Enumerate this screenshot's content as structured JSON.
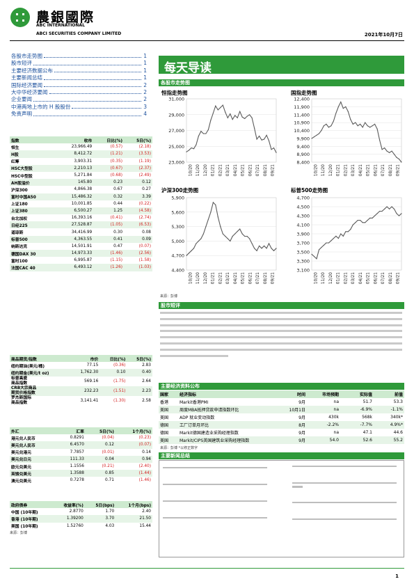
{
  "header": {
    "brand_cn": "農銀國際",
    "brand_en_1": "ABC INTERNATIONAL",
    "brand_en_2": "ABCI SECURITIES COMPANY LIMITED",
    "date": "2021年10月7日"
  },
  "toc": [
    {
      "label": "各股市走势图",
      "page": "1"
    },
    {
      "label": "股市短评",
      "page": "1"
    },
    {
      "label": "主要经济数据公布",
      "page": "1"
    },
    {
      "label": "主要新闻总结",
      "page": "1"
    },
    {
      "label": "国际经济要闻",
      "page": "2"
    },
    {
      "label": "大中华经济要闻",
      "page": "2"
    },
    {
      "label": "企业要闻",
      "page": "2"
    },
    {
      "label": "中港两地上市的 H 股股份",
      "page": "3"
    },
    {
      "label": "免责声明",
      "page": "4"
    }
  ],
  "index_table": {
    "headers": [
      "指数",
      "收市",
      "日比(%)",
      "5日(%)"
    ],
    "rows": [
      [
        "恒生",
        "23,966.49",
        "(0.57)",
        "(2.18)"
      ],
      [
        "H股",
        "8,412.72",
        "(1.21)",
        "(3.53)"
      ],
      [
        "红筹",
        "3,903.31",
        "(0.35)",
        "(1.19)"
      ],
      [
        "HSC大型股",
        "2,210.13",
        "(0.67)",
        "(2.37)"
      ],
      [
        "HSC中型股",
        "5,271.84",
        "(0.68)",
        "(2.49)"
      ],
      [
        "AH股溢价",
        "145.80",
        "0.23",
        "0.12"
      ],
      [
        "沪深300",
        "4,866.38",
        "0.67",
        "0.27"
      ],
      [
        "富时中国A50",
        "15,486.32",
        "0.32",
        "3.39"
      ],
      [
        "上证180",
        "10,001.85",
        "0.44",
        "(0.22)"
      ],
      [
        "上证380",
        "6,500.27",
        "1.25",
        "(4.58)"
      ],
      [
        "台北加权",
        "16,393.16",
        "(0.41)",
        "(2.74)"
      ],
      [
        "日经225",
        "27,528.87",
        "(1.05)",
        "(6.53)"
      ],
      [
        "道琼斯",
        "34,416.99",
        "0.30",
        "0.08"
      ],
      [
        "标普500",
        "4,363.55",
        "0.41",
        "0.09"
      ],
      [
        "纳斯达克",
        "14,501.91",
        "0.47",
        "(0.07)"
      ],
      [
        "德国DAX 30",
        "14,973.33",
        "(1.46)",
        "(2.56)"
      ],
      [
        "富时100",
        "6,995.87",
        "(1.15)",
        "(1.58)"
      ],
      [
        "法国CAC 40",
        "6,493.12",
        "(1.26)",
        "(1.03)"
      ]
    ]
  },
  "commodity_table": {
    "headers": [
      "商品期货/指数",
      "市价",
      "日比(%)",
      "5日(%)"
    ],
    "rows": [
      [
        "纽约期油(美元/桶)",
        "77.15",
        "(0.36)",
        "2.83"
      ],
      [
        "纽约期金(美元/t oz)",
        "1,762.30",
        "0.10",
        "0.40"
      ],
      [
        "标普高盛\n商品指数",
        "569.16",
        "(1.75)",
        "2.64"
      ],
      [
        "CRB大宗商品\n期货价格指数",
        "232.23",
        "(1.51)",
        "2.23"
      ],
      [
        "罗杰斯国际\n商品指数",
        "3,141.41",
        "(1.30)",
        "2.58"
      ]
    ]
  },
  "fx_table": {
    "headers": [
      "外汇",
      "汇率",
      "5日(%)",
      "1个月(%)"
    ],
    "rows": [
      [
        "港元兑人民币",
        "0.8291",
        "(0.04)",
        "(0.23)"
      ],
      [
        "美元兑人民币",
        "6.4570",
        "0.12",
        "(0.07)"
      ],
      [
        "美元兑港元",
        "7.7857",
        "(0.01)",
        "0.14"
      ],
      [
        "美元兑日元",
        "111.33",
        "0.04",
        "0.94"
      ],
      [
        "欧元兑美元",
        "1.1556",
        "(0.21)",
        "(2.40)"
      ],
      [
        "英镑兑美元",
        "1.3588",
        "0.85",
        "(1.44)"
      ],
      [
        "澳元兑美元",
        "0.7278",
        "0.71",
        "(1.46)"
      ]
    ]
  },
  "bond_table": {
    "headers": [
      "政府债券",
      "收益率(%)",
      "5日(bps)",
      "1个月(bps)"
    ],
    "rows": [
      [
        "中国 (10年期)",
        "2.8770",
        "1.70",
        "2.40"
      ],
      [
        "香港 (10年期)",
        "1.39200",
        "3.70",
        "21.50"
      ],
      [
        "美国 (10年期)",
        "1.52760",
        "4.03",
        "15.44"
      ]
    ],
    "source": "来源：彭博"
  },
  "main_title": "每天导读",
  "charts_section": "各股市走势图",
  "chart_source": "来源：彭博",
  "chart_data": [
    {
      "type": "line",
      "title": "恒指走势图",
      "color": "#5a5a5a",
      "x_ticks": [
        "10/20",
        "11/20",
        "12/20",
        "01/21",
        "02/21",
        "03/21",
        "04/21",
        "05/21",
        "06/21",
        "07/21",
        "08/21",
        "09/21"
      ],
      "ylim": [
        23000,
        31000
      ],
      "y_ticks": [
        23000,
        25000,
        27000,
        29000,
        31000
      ],
      "y_tick_labels": [
        "23,000",
        "25,000",
        "27,000",
        "29,000",
        "31,000"
      ],
      "values": [
        24300,
        24500,
        24800,
        24700,
        25200,
        26300,
        26900,
        26600,
        26600,
        27100,
        28300,
        29200,
        30100,
        29600,
        29900,
        30200,
        29300,
        28600,
        29100,
        28400,
        28900,
        28600,
        29400,
        28700,
        28500,
        28800,
        29000,
        28600,
        27300,
        25900,
        26300,
        25800,
        25900,
        26400,
        25700,
        24600,
        24800,
        24200
      ]
    },
    {
      "type": "line",
      "title": "国指走势图",
      "color": "#5a5a5a",
      "x_ticks": [
        "10/20",
        "11/20",
        "12/20",
        "01/21",
        "02/21",
        "03/21",
        "04/21",
        "05/21",
        "06/21",
        "07/21",
        "08/21",
        "09/21"
      ],
      "ylim": [
        8400,
        12400
      ],
      "y_ticks": [
        8400,
        8900,
        9400,
        9900,
        10400,
        10900,
        11400,
        11900,
        12400
      ],
      "y_tick_labels": [
        "8,400",
        "8,900",
        "9,400",
        "9,900",
        "10,400",
        "10,900",
        "11,400",
        "11,900",
        "12,400"
      ],
      "values": [
        9900,
        10000,
        10100,
        10200,
        10400,
        10700,
        10800,
        10600,
        10700,
        11000,
        11500,
        11900,
        12200,
        11800,
        11900,
        11600,
        11100,
        10800,
        10900,
        10700,
        10800,
        10600,
        10900,
        10700,
        10600,
        10700,
        10800,
        10500,
        9800,
        9200,
        9300,
        9100,
        9000,
        9100,
        8900,
        8700,
        8600,
        8400
      ]
    },
    {
      "type": "line",
      "title": "沪深300走势图",
      "color": "#5a5a5a",
      "x_ticks": [
        "10/20",
        "11/20",
        "12/20",
        "01/21",
        "02/21",
        "03/21",
        "04/21",
        "05/21",
        "06/21",
        "07/21",
        "08/21",
        "09/21"
      ],
      "ylim": [
        4400,
        5900
      ],
      "y_ticks": [
        4400,
        4700,
        5000,
        5300,
        5600,
        5900
      ],
      "y_tick_labels": [
        "4,400",
        "4,700",
        "5,000",
        "5,300",
        "5,600",
        "5,900"
      ],
      "values": [
        4700,
        4750,
        4800,
        4850,
        4950,
        5000,
        5050,
        5150,
        5300,
        5450,
        5600,
        5800,
        5750,
        5500,
        5300,
        5150,
        5100,
        5050,
        5000,
        5100,
        5150,
        5200,
        5250,
        5150,
        5100,
        5100,
        5050,
        4950,
        4850,
        4800,
        4900,
        4850,
        4900,
        4850,
        4950,
        4850,
        4800,
        4850
      ]
    },
    {
      "type": "line",
      "title": "标普500走势图",
      "color": "#5a5a5a",
      "x_ticks": [
        "10/20",
        "11/20",
        "12/20",
        "01/21",
        "02/21",
        "03/21",
        "04/21",
        "05/21",
        "06/21",
        "07/21",
        "08/21",
        "09/21"
      ],
      "ylim": [
        3100,
        4700
      ],
      "y_ticks": [
        3100,
        3300,
        3500,
        3700,
        3900,
        4100,
        4300,
        4500,
        4700
      ],
      "y_tick_labels": [
        "3,100",
        "3,300",
        "3,500",
        "3,700",
        "3,900",
        "4,100",
        "4,300",
        "4,500",
        "4,700"
      ],
      "values": [
        3450,
        3400,
        3350,
        3550,
        3600,
        3650,
        3700,
        3700,
        3750,
        3800,
        3850,
        3800,
        3900,
        3850,
        3950,
        3950,
        4000,
        4100,
        4150,
        4200,
        4200,
        4150,
        4150,
        4200,
        4250,
        4250,
        4300,
        4350,
        4400,
        4400,
        4450,
        4500,
        4450,
        4500,
        4450,
        4350,
        4300,
        4350
      ]
    }
  ],
  "commentary": {
    "title": "股市短评",
    "line_count": 8
  },
  "economic_data": {
    "title": "主要经济资料公布",
    "headers": [
      "国家",
      "经济指标",
      "时间",
      "市场预期",
      "实际值",
      "前值"
    ],
    "rows": [
      [
        "香港",
        "Markit香港PMI",
        "9月",
        "na",
        "51.7",
        "53.3"
      ],
      [
        "美国",
        "周度MBA抵押贷款申请指数环比",
        "10月1日",
        "na",
        "-6.9%",
        "-1.1%"
      ],
      [
        "美国",
        "ADP 就业变动指数",
        "9月",
        "430k",
        "568k",
        "340k*"
      ],
      [
        "德国",
        "工厂订单月环比",
        "8月",
        "-2.2%",
        "-7.7%",
        "4.9%*"
      ],
      [
        "德国",
        "Markit德国建造业采购经理指数",
        "9月",
        "na",
        "47.1",
        "44.6"
      ],
      [
        "美国",
        "Markit/CIPS英国建筑业采购经理指数",
        "9月",
        "54.0",
        "52.6",
        "55.2"
      ]
    ],
    "source": "来源：彭博 *以修正数字"
  },
  "news": {
    "title": "主要新闻总结"
  },
  "footer": {
    "page": "1"
  }
}
